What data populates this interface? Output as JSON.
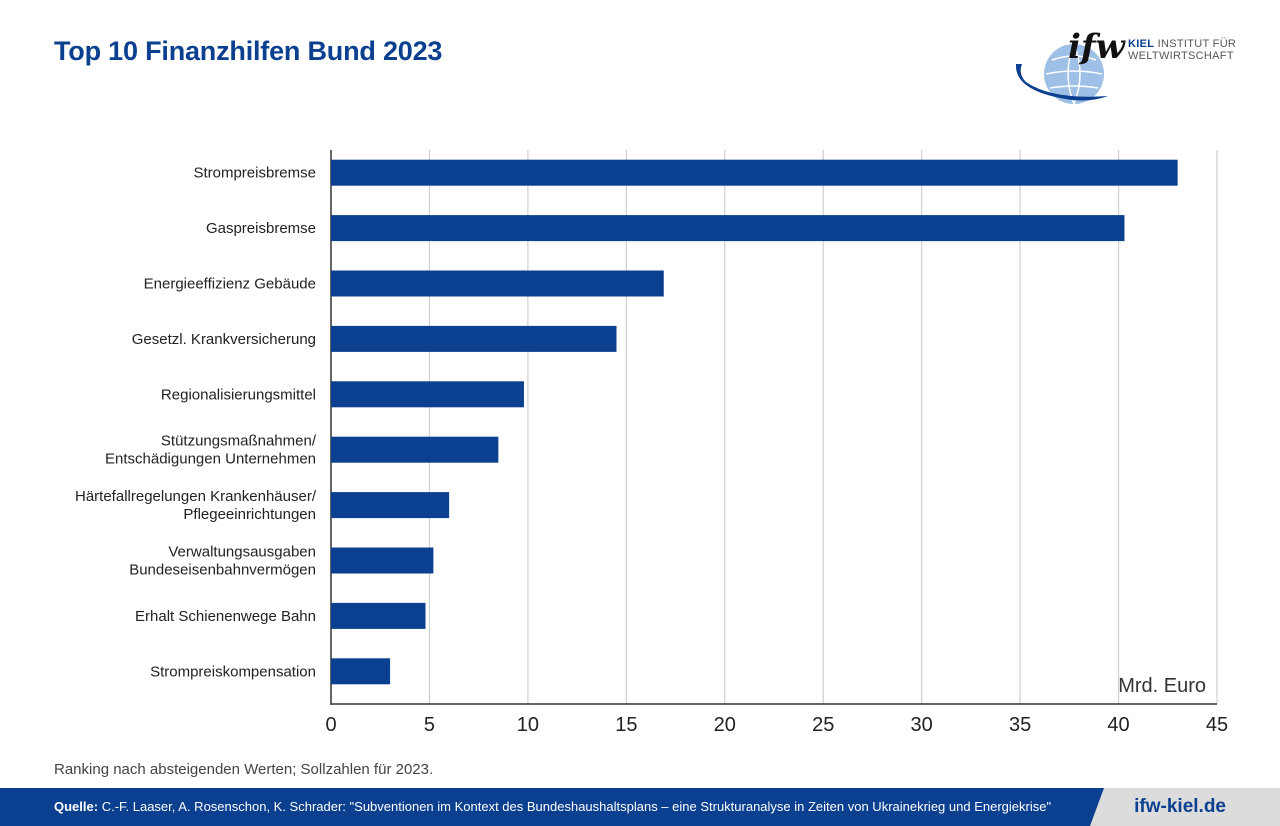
{
  "header": {
    "title": "Top 10 Finanzhilfen Bund 2023",
    "logo_mark": "ifw",
    "logo_line1_bold": "KIEL",
    "logo_line1_rest": " INSTITUT FÜR",
    "logo_line2": "WELTWIRTSCHAFT"
  },
  "chart_data": {
    "type": "bar",
    "orientation": "horizontal",
    "categories": [
      [
        "Strompreisbremse"
      ],
      [
        "Gaspreisbremse"
      ],
      [
        "Energieeffizienz Gebäude"
      ],
      [
        "Gesetzl. Krankversicherung"
      ],
      [
        "Regionalisierungsmittel"
      ],
      [
        "Stützungsmaßnahmen/",
        "Entschädigungen Unternehmen"
      ],
      [
        "Härtefallregelungen Krankenhäuser/",
        "Pflegeeinrichtungen"
      ],
      [
        "Verwaltungsausgaben",
        "Bundeseisenbahnvermögen"
      ],
      [
        "Erhalt Schienenwege Bahn"
      ],
      [
        "Strompreiskompensation"
      ]
    ],
    "values": [
      43.0,
      40.3,
      16.9,
      14.5,
      9.8,
      8.5,
      6.0,
      5.2,
      4.8,
      3.0
    ],
    "xlim": [
      0,
      45
    ],
    "xticks": [
      "0",
      "5",
      "10",
      "15",
      "20",
      "25",
      "30",
      "35",
      "40",
      "45"
    ],
    "unit_label": "Mrd. Euro",
    "grid": "vertical",
    "bar_color": "#0b3f8f"
  },
  "footnote": "Ranking nach absteigenden Werten; Sollzahlen für 2023.",
  "footer": {
    "source_label": "Quelle:",
    "source_text": " C.-F. Laaser, A. Rosenschon, K. Schrader: \"Subventionen im Kontext des Bundeshaushaltsplans – eine Strukturanalyse in Zeiten von Ukrainekrieg und Energiekrise\"",
    "site": "ifw-kiel.de"
  }
}
